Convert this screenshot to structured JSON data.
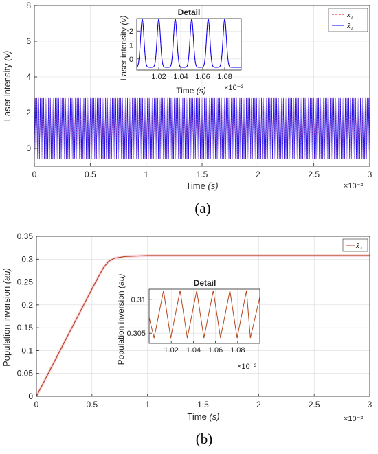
{
  "chart_data": [
    {
      "type": "line",
      "panel_label": "(a)",
      "xlabel": "Time",
      "xlabel_unit": "(s)",
      "ylabel": "Laser intensity",
      "ylabel_unit": "(v)",
      "xlim": [
        0,
        0.003
      ],
      "ylim": [
        -1,
        8
      ],
      "x_ticks": [
        "0",
        "0.5",
        "1",
        "1.5",
        "2",
        "2.5",
        "3"
      ],
      "y_ticks": [
        "0",
        "2",
        "4",
        "6",
        "8"
      ],
      "x_exponent": "×10⁻³",
      "grid": true,
      "legend_position": "top-right",
      "series": [
        {
          "name": "x₁",
          "color": "#ff0000",
          "style": "dashed",
          "min": -0.6,
          "max": 2.85
        },
        {
          "name": "x̂₁",
          "color": "#0000ff",
          "style": "solid",
          "min": -0.6,
          "max": 2.85
        }
      ],
      "oscillation_period": 1.5e-05,
      "inset": {
        "title": "Detail",
        "xlabel": "Time",
        "xlabel_unit": "(s)",
        "ylabel": "Laser intensity",
        "ylabel_unit": "(v)",
        "xlim": [
          0.001,
          0.001095
        ],
        "ylim": [
          -0.8,
          2.9
        ],
        "x_ticks": [
          "1.02",
          "1.04",
          "1.06",
          "1.08"
        ],
        "x_tick_values": [
          0.00102,
          0.00104,
          0.00106,
          0.00108
        ],
        "y_ticks": [
          "0",
          "1",
          "2"
        ],
        "x_exponent": "×10⁻³",
        "peaks": [
          0.001005,
          0.00102,
          0.001035,
          0.00105,
          0.001065,
          0.00108
        ]
      }
    },
    {
      "type": "line",
      "panel_label": "(b)",
      "xlabel": "Time",
      "xlabel_unit": "(s)",
      "ylabel": "Population inversion",
      "ylabel_unit": "(au)",
      "xlim": [
        0,
        0.003
      ],
      "ylim": [
        0,
        0.35
      ],
      "x_ticks": [
        "0",
        "0.5",
        "1",
        "1.5",
        "2",
        "2.5",
        "3"
      ],
      "y_ticks": [
        "0",
        "0.05",
        "0.1",
        "0.15",
        "0.2",
        "0.25",
        "0.3",
        "0.35"
      ],
      "x_exponent": "×10⁻³",
      "grid": true,
      "legend_position": "top-right",
      "series": [
        {
          "name": "x̂₂",
          "color": "#b5451b",
          "style": "solid",
          "points": [
            [
              0,
              0
            ],
            [
              0.0001,
              0.047
            ],
            [
              0.0002,
              0.094
            ],
            [
              0.0003,
              0.141
            ],
            [
              0.0004,
              0.188
            ],
            [
              0.0005,
              0.235
            ],
            [
              0.0006,
              0.28
            ],
            [
              0.00065,
              0.295
            ],
            [
              0.0007,
              0.302
            ],
            [
              0.0008,
              0.306
            ],
            [
              0.001,
              0.308
            ],
            [
              0.003,
              0.308
            ]
          ]
        }
      ],
      "inset": {
        "title": "Detail",
        "xlabel": "",
        "ylabel": "Population inversion",
        "ylabel_unit": "(au)",
        "xlim": [
          0.001,
          0.0011
        ],
        "ylim": [
          0.3035,
          0.3115
        ],
        "x_ticks": [
          "1.02",
          "1.04",
          "1.06",
          "1.08"
        ],
        "x_tick_values": [
          0.00102,
          0.00104,
          0.00106,
          0.00108
        ],
        "y_ticks": [
          "0.305",
          "0.31"
        ],
        "y_tick_values": [
          0.305,
          0.31
        ],
        "x_exponent": "×10⁻³",
        "sawtooth_min": 0.3043,
        "sawtooth_max": 0.3113,
        "peaks": [
          0.001013,
          0.001028,
          0.001043,
          0.001058,
          0.001073,
          0.001088
        ]
      }
    }
  ]
}
